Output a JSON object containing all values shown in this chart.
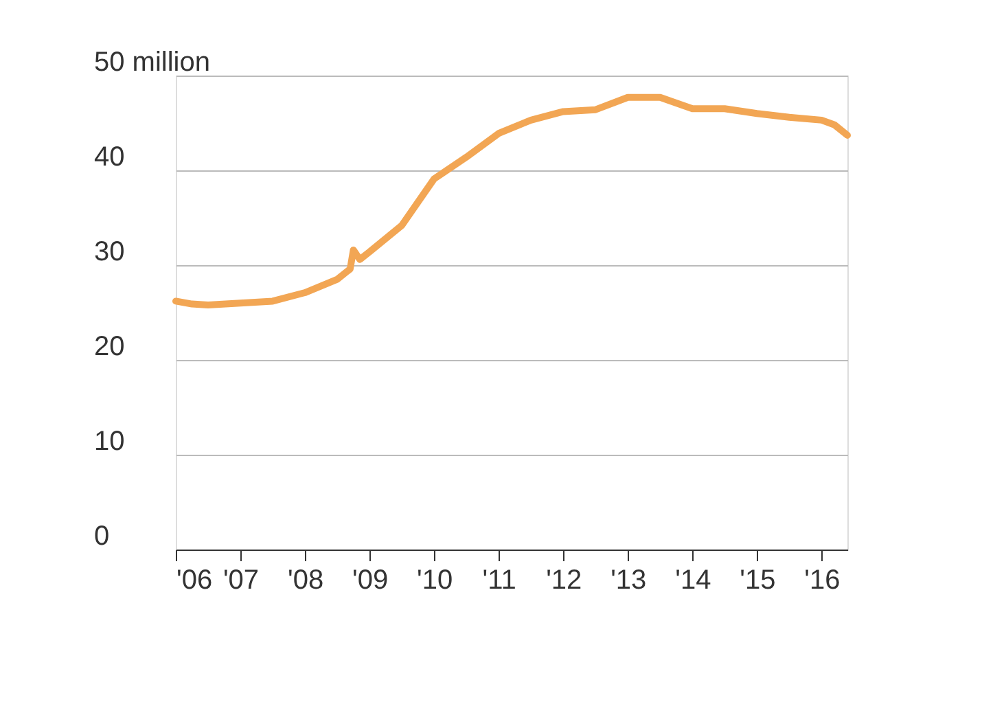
{
  "chart_data": {
    "type": "line",
    "x": [
      2006.0,
      2006.25,
      2006.5,
      2007.0,
      2007.5,
      2008.0,
      2008.5,
      2008.7,
      2008.75,
      2008.85,
      2009.0,
      2009.5,
      2010.0,
      2010.5,
      2011.0,
      2011.5,
      2012.0,
      2012.5,
      2013.0,
      2013.5,
      2014.0,
      2014.5,
      2015.0,
      2015.5,
      2016.0,
      2016.2,
      2016.4
    ],
    "series": [
      {
        "color": "#f2a654",
        "values": [
          26.2,
          25.9,
          25.8,
          26.0,
          26.2,
          27.1,
          28.5,
          29.6,
          31.6,
          30.6,
          31.4,
          34.2,
          39.1,
          41.4,
          43.9,
          45.3,
          46.2,
          46.4,
          47.7,
          47.7,
          46.5,
          46.5,
          46.0,
          45.6,
          45.3,
          44.8,
          43.7
        ]
      }
    ],
    "xlim": [
      2006.0,
      2016.4
    ],
    "xticks": [
      {
        "value": 2006,
        "label": "'06"
      },
      {
        "value": 2007,
        "label": "'07"
      },
      {
        "value": 2008,
        "label": "'08"
      },
      {
        "value": 2009,
        "label": "'09"
      },
      {
        "value": 2010,
        "label": "'10"
      },
      {
        "value": 2011,
        "label": "'11"
      },
      {
        "value": 2012,
        "label": "'12"
      },
      {
        "value": 2013,
        "label": "'13"
      },
      {
        "value": 2014,
        "label": "'14"
      },
      {
        "value": 2015,
        "label": "'15"
      },
      {
        "value": 2016,
        "label": "'16"
      }
    ],
    "ylim": [
      0,
      50
    ],
    "yticks": [
      0,
      10,
      20,
      30,
      40,
      {
        "value": 50,
        "label": "50 million"
      }
    ],
    "grid": "y",
    "marker": "none",
    "line_style": "solid"
  }
}
